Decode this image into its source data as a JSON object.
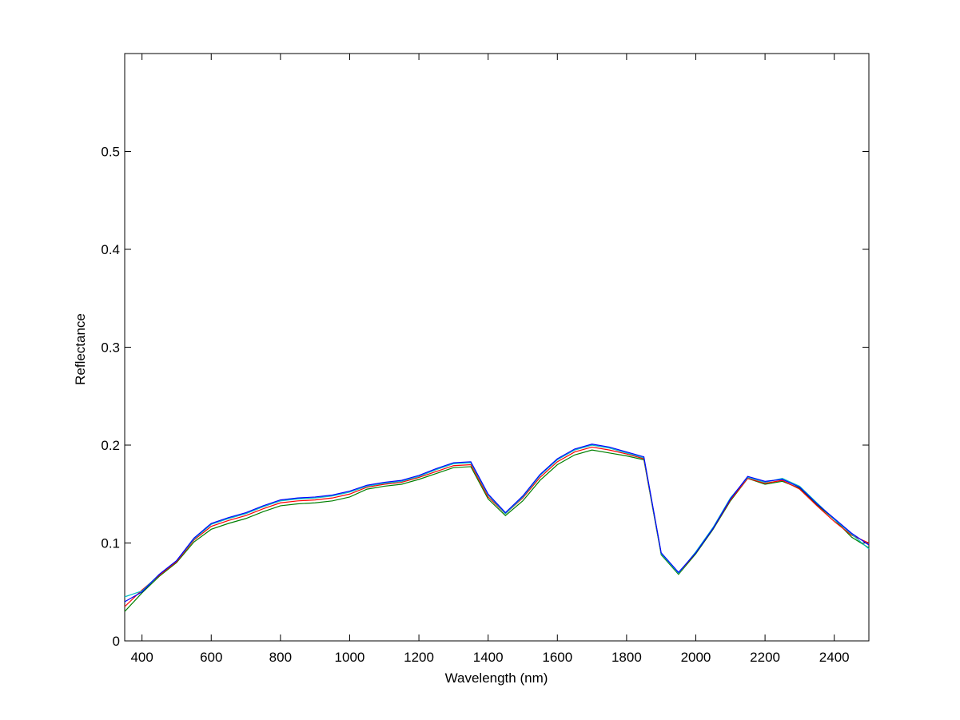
{
  "chart_data": {
    "type": "line",
    "xlabel": "Wavelength (nm)",
    "ylabel": "Reflectance",
    "x": [
      350,
      400,
      450,
      500,
      550,
      600,
      650,
      700,
      750,
      800,
      850,
      900,
      950,
      1000,
      1050,
      1100,
      1150,
      1200,
      1250,
      1300,
      1350,
      1400,
      1450,
      1500,
      1550,
      1600,
      1650,
      1700,
      1750,
      1800,
      1850,
      1900,
      1950,
      2000,
      2050,
      2100,
      2150,
      2200,
      2250,
      2300,
      2350,
      2400,
      2450,
      2500
    ],
    "series": [
      {
        "color": "#008000",
        "values": [
          0.03,
          0.049,
          0.066,
          0.08,
          0.101,
          0.114,
          0.12,
          0.125,
          0.132,
          0.138,
          0.14,
          0.141,
          0.143,
          0.147,
          0.155,
          0.158,
          0.16,
          0.165,
          0.171,
          0.177,
          0.178,
          0.145,
          0.128,
          0.143,
          0.164,
          0.18,
          0.19,
          0.195,
          0.192,
          0.189,
          0.185,
          0.088,
          0.068,
          0.089,
          0.114,
          0.143,
          0.166,
          0.16,
          0.163,
          0.156,
          0.139,
          0.124,
          0.106,
          0.095
        ]
      },
      {
        "color": "#ff0000",
        "values": [
          0.035,
          0.052,
          0.067,
          0.081,
          0.103,
          0.117,
          0.123,
          0.128,
          0.135,
          0.141,
          0.143,
          0.144,
          0.146,
          0.15,
          0.157,
          0.16,
          0.162,
          0.167,
          0.173,
          0.179,
          0.18,
          0.147,
          0.13,
          0.146,
          0.167,
          0.183,
          0.193,
          0.198,
          0.195,
          0.191,
          0.186,
          0.089,
          0.069,
          0.09,
          0.115,
          0.144,
          0.166,
          0.161,
          0.164,
          0.155,
          0.138,
          0.122,
          0.108,
          0.1
        ]
      },
      {
        "color": "#00bfbf",
        "values": [
          0.045,
          0.051,
          0.068,
          0.082,
          0.104,
          0.119,
          0.125,
          0.13,
          0.137,
          0.143,
          0.145,
          0.146,
          0.148,
          0.152,
          0.158,
          0.161,
          0.163,
          0.168,
          0.175,
          0.181,
          0.182,
          0.149,
          0.13,
          0.147,
          0.169,
          0.185,
          0.195,
          0.2,
          0.197,
          0.192,
          0.187,
          0.089,
          0.069,
          0.091,
          0.116,
          0.146,
          0.167,
          0.162,
          0.166,
          0.158,
          0.141,
          0.124,
          0.109,
          0.094
        ]
      },
      {
        "color": "#0000ff",
        "values": [
          0.04,
          0.05,
          0.068,
          0.082,
          0.105,
          0.12,
          0.126,
          0.131,
          0.138,
          0.144,
          0.146,
          0.147,
          0.149,
          0.153,
          0.159,
          0.162,
          0.164,
          0.169,
          0.176,
          0.182,
          0.183,
          0.15,
          0.131,
          0.148,
          0.17,
          0.186,
          0.196,
          0.201,
          0.198,
          0.193,
          0.188,
          0.09,
          0.07,
          0.09,
          0.115,
          0.145,
          0.168,
          0.163,
          0.165,
          0.157,
          0.14,
          0.125,
          0.11,
          0.098
        ]
      }
    ],
    "xlim": [
      350,
      2500
    ],
    "xticks": [
      400,
      600,
      800,
      1000,
      1200,
      1400,
      1600,
      1800,
      2000,
      2200,
      2400
    ],
    "ylim": [
      0,
      0.6
    ],
    "yticks": [
      0,
      0.1,
      0.2,
      0.3,
      0.4,
      0.5
    ],
    "grid": false
  }
}
